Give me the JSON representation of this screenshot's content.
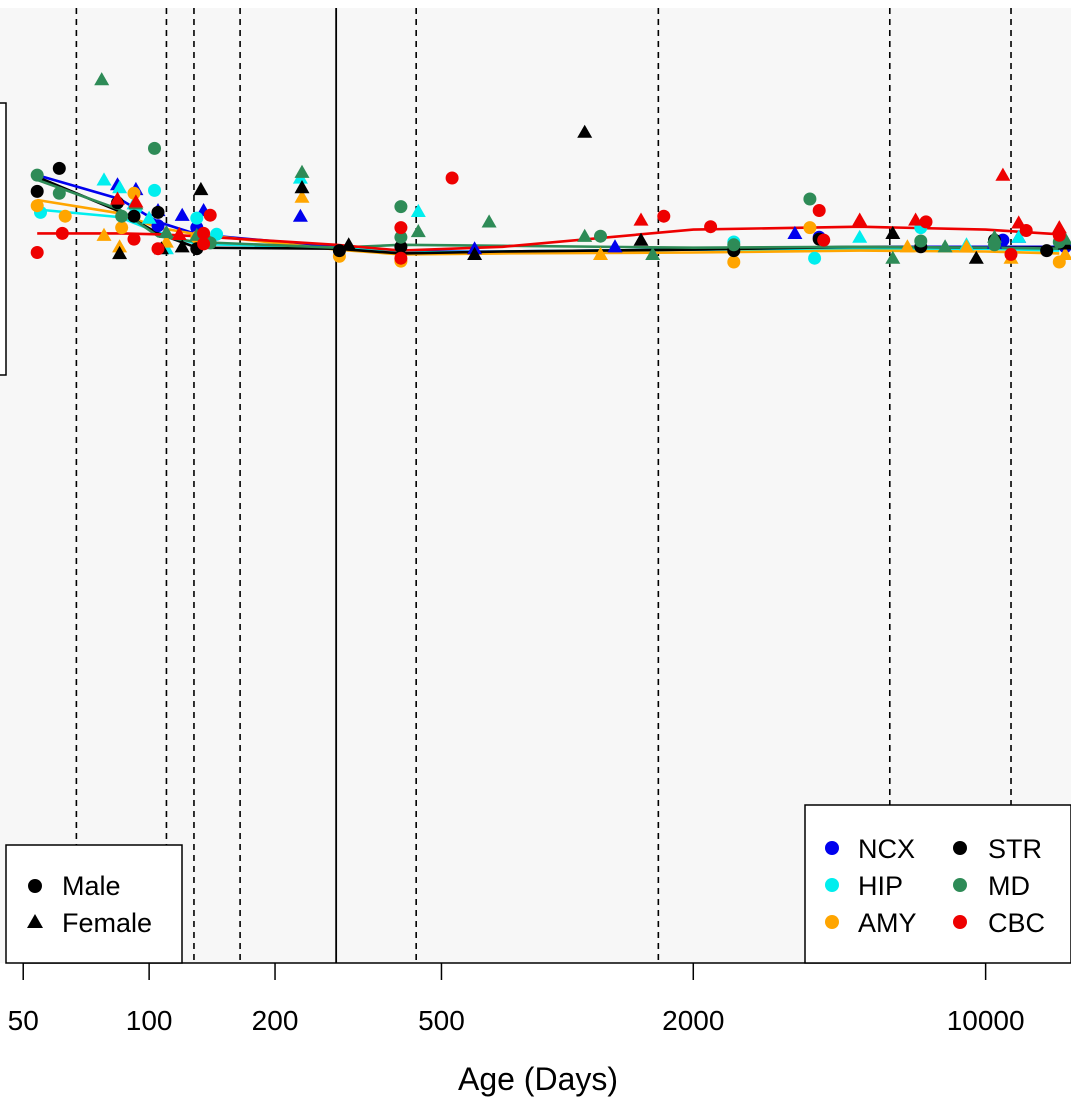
{
  "chart_data": {
    "type": "scatter",
    "title": "",
    "xlabel": "Age (Days)",
    "ylabel": "",
    "x_scale": "log",
    "xlim": [
      44,
      16000
    ],
    "ylim": [
      0,
      1
    ],
    "x_ticks": [
      50,
      100,
      200,
      500,
      2000,
      10000
    ],
    "x_tick_labels": [
      "50",
      "100",
      "200",
      "500",
      "2000",
      "10000"
    ],
    "grid": false,
    "background": "#f7f7f7",
    "vlines_dashed": [
      67,
      110,
      128,
      165,
      435,
      1650,
      5900,
      11500
    ],
    "vline_solid": 280,
    "colors": {
      "NCX": "#0000ee",
      "HIP": "#00eeee",
      "AMY": "#ffa500",
      "STR": "#000000",
      "MD": "#2e8b57",
      "CBC": "#ee0000"
    },
    "shape_legend": {
      "position": "bottom-left",
      "entries": [
        {
          "label": "Male",
          "shape": "circle"
        },
        {
          "label": "Female",
          "shape": "triangle"
        }
      ]
    },
    "region_legend": {
      "position": "bottom-right",
      "entries": [
        "NCX",
        "STR",
        "HIP",
        "MD",
        "AMY",
        "CBC"
      ]
    },
    "lines": [
      {
        "name": "NCX",
        "points": [
          [
            54,
            0.825
          ],
          [
            85,
            0.8
          ],
          [
            105,
            0.776
          ],
          [
            130,
            0.763
          ],
          [
            280,
            0.75
          ],
          [
            400,
            0.745
          ],
          [
            700,
            0.745
          ],
          [
            2000,
            0.747
          ],
          [
            5000,
            0.75
          ],
          [
            10000,
            0.75
          ],
          [
            15000,
            0.75
          ]
        ]
      },
      {
        "name": "HIP",
        "points": [
          [
            54,
            0.789
          ],
          [
            85,
            0.781
          ],
          [
            105,
            0.765
          ],
          [
            130,
            0.753
          ],
          [
            280,
            0.749
          ],
          [
            400,
            0.744
          ],
          [
            700,
            0.745
          ],
          [
            2000,
            0.747
          ],
          [
            5000,
            0.748
          ],
          [
            10000,
            0.748
          ],
          [
            15000,
            0.746
          ]
        ]
      },
      {
        "name": "AMY",
        "points": [
          [
            54,
            0.799
          ],
          [
            85,
            0.785
          ],
          [
            105,
            0.77
          ],
          [
            130,
            0.763
          ],
          [
            280,
            0.747
          ],
          [
            400,
            0.742
          ],
          [
            700,
            0.743
          ],
          [
            2000,
            0.744
          ],
          [
            5000,
            0.746
          ],
          [
            10000,
            0.745
          ],
          [
            15000,
            0.743
          ]
        ]
      },
      {
        "name": "STR",
        "points": [
          [
            54,
            0.823
          ],
          [
            85,
            0.787
          ],
          [
            105,
            0.764
          ],
          [
            130,
            0.749
          ],
          [
            280,
            0.748
          ],
          [
            400,
            0.743
          ],
          [
            700,
            0.745
          ],
          [
            2000,
            0.747
          ],
          [
            5000,
            0.75
          ],
          [
            10000,
            0.749
          ],
          [
            15000,
            0.749
          ]
        ]
      },
      {
        "name": "MD",
        "points": [
          [
            54,
            0.82
          ],
          [
            85,
            0.789
          ],
          [
            105,
            0.761
          ],
          [
            130,
            0.755
          ],
          [
            280,
            0.749
          ],
          [
            400,
            0.752
          ],
          [
            700,
            0.751
          ],
          [
            2000,
            0.749
          ],
          [
            5000,
            0.75
          ],
          [
            10000,
            0.749
          ],
          [
            15000,
            0.748
          ]
        ]
      },
      {
        "name": "CBC",
        "points": [
          [
            54,
            0.764
          ],
          [
            85,
            0.764
          ],
          [
            105,
            0.763
          ],
          [
            130,
            0.761
          ],
          [
            280,
            0.752
          ],
          [
            400,
            0.746
          ],
          [
            700,
            0.75
          ],
          [
            2000,
            0.768
          ],
          [
            5000,
            0.771
          ],
          [
            10000,
            0.768
          ],
          [
            15000,
            0.763
          ]
        ]
      }
    ],
    "points": [
      {
        "region": "NCX",
        "shape": "triangle",
        "points": [
          [
            84,
            0.815
          ],
          [
            93,
            0.81
          ],
          [
            105,
            0.788
          ],
          [
            120,
            0.783
          ],
          [
            135,
            0.788
          ],
          [
            230,
            0.782
          ],
          [
            600,
            0.748
          ],
          [
            12000,
            0.76
          ],
          [
            10500,
            0.754
          ],
          [
            3500,
            0.764
          ],
          [
            1300,
            0.75
          ]
        ]
      },
      {
        "region": "NCX",
        "shape": "circle",
        "points": [
          [
            105,
            0.772
          ],
          [
            130,
            0.77
          ],
          [
            4000,
            0.76
          ],
          [
            15500,
            0.75
          ],
          [
            11000,
            0.757
          ]
        ]
      },
      {
        "region": "HIP",
        "shape": "triangle",
        "points": [
          [
            78,
            0.82
          ],
          [
            85,
            0.812
          ],
          [
            92,
            0.795
          ],
          [
            100,
            0.78
          ],
          [
            110,
            0.748
          ],
          [
            230,
            0.822
          ],
          [
            440,
            0.787
          ],
          [
            5000,
            0.76
          ],
          [
            12000,
            0.76
          ],
          [
            9000,
            0.752
          ]
        ]
      },
      {
        "region": "HIP",
        "shape": "circle",
        "points": [
          [
            55,
            0.786
          ],
          [
            93,
            0.79
          ],
          [
            103,
            0.809
          ],
          [
            130,
            0.78
          ],
          [
            145,
            0.763
          ],
          [
            3900,
            0.738
          ],
          [
            7000,
            0.77
          ],
          [
            2500,
            0.755
          ]
        ]
      },
      {
        "region": "AMY",
        "shape": "triangle",
        "points": [
          [
            78,
            0.762
          ],
          [
            85,
            0.75
          ],
          [
            110,
            0.755
          ],
          [
            232,
            0.802
          ],
          [
            1200,
            0.742
          ],
          [
            6500,
            0.75
          ],
          [
            9000,
            0.75
          ],
          [
            11500,
            0.738
          ],
          [
            15500,
            0.742
          ]
        ]
      },
      {
        "region": "AMY",
        "shape": "circle",
        "points": [
          [
            54,
            0.793
          ],
          [
            63,
            0.782
          ],
          [
            86,
            0.77
          ],
          [
            92,
            0.806
          ],
          [
            130,
            0.76
          ],
          [
            285,
            0.74
          ],
          [
            400,
            0.735
          ],
          [
            2500,
            0.734
          ],
          [
            3800,
            0.77
          ],
          [
            15000,
            0.734
          ]
        ]
      },
      {
        "region": "STR",
        "shape": "triangle",
        "points": [
          [
            85,
            0.743
          ],
          [
            107,
            0.748
          ],
          [
            120,
            0.75
          ],
          [
            133,
            0.81
          ],
          [
            232,
            0.812
          ],
          [
            300,
            0.752
          ],
          [
            600,
            0.742
          ],
          [
            1100,
            0.87
          ],
          [
            1500,
            0.757
          ],
          [
            6000,
            0.764
          ],
          [
            9500,
            0.738
          ],
          [
            15500,
            0.753
          ]
        ]
      },
      {
        "region": "STR",
        "shape": "circle",
        "points": [
          [
            54,
            0.808
          ],
          [
            61,
            0.832
          ],
          [
            84,
            0.796
          ],
          [
            92,
            0.782
          ],
          [
            105,
            0.786
          ],
          [
            130,
            0.748
          ],
          [
            285,
            0.746
          ],
          [
            400,
            0.75
          ],
          [
            2500,
            0.746
          ],
          [
            4000,
            0.758
          ],
          [
            7000,
            0.75
          ],
          [
            10500,
            0.757
          ],
          [
            14000,
            0.746
          ]
        ]
      },
      {
        "region": "MD",
        "shape": "triangle",
        "points": [
          [
            77,
            0.925
          ],
          [
            93,
            0.795
          ],
          [
            110,
            0.765
          ],
          [
            130,
            0.762
          ],
          [
            232,
            0.828
          ],
          [
            440,
            0.766
          ],
          [
            650,
            0.776
          ],
          [
            1100,
            0.761
          ],
          [
            1600,
            0.742
          ],
          [
            6000,
            0.738
          ],
          [
            8000,
            0.75
          ],
          [
            10500,
            0.76
          ],
          [
            15500,
            0.758
          ]
        ]
      },
      {
        "region": "MD",
        "shape": "circle",
        "points": [
          [
            54,
            0.825
          ],
          [
            61,
            0.806
          ],
          [
            86,
            0.782
          ],
          [
            103,
            0.853
          ],
          [
            140,
            0.754
          ],
          [
            400,
            0.792
          ],
          [
            400,
            0.76
          ],
          [
            1200,
            0.761
          ],
          [
            2500,
            0.752
          ],
          [
            3800,
            0.8
          ],
          [
            7000,
            0.756
          ],
          [
            10500,
            0.752
          ],
          [
            15000,
            0.755
          ]
        ]
      },
      {
        "region": "CBC",
        "shape": "triangle",
        "points": [
          [
            84,
            0.8
          ],
          [
            93,
            0.797
          ],
          [
            118,
            0.763
          ],
          [
            1500,
            0.778
          ],
          [
            5000,
            0.778
          ],
          [
            6800,
            0.778
          ],
          [
            11000,
            0.825
          ],
          [
            12000,
            0.775
          ],
          [
            15000,
            0.77
          ],
          [
            18000,
            0.825
          ]
        ]
      },
      {
        "region": "CBC",
        "shape": "circle",
        "points": [
          [
            54,
            0.744
          ],
          [
            62,
            0.764
          ],
          [
            92,
            0.758
          ],
          [
            105,
            0.748
          ],
          [
            135,
            0.764
          ],
          [
            135,
            0.753
          ],
          [
            140,
            0.783
          ],
          [
            400,
            0.77
          ],
          [
            400,
            0.738
          ],
          [
            530,
            0.822
          ],
          [
            1700,
            0.782
          ],
          [
            2200,
            0.771
          ],
          [
            4000,
            0.788
          ],
          [
            4100,
            0.757
          ],
          [
            7200,
            0.776
          ],
          [
            11500,
            0.742
          ],
          [
            12500,
            0.767
          ],
          [
            15000,
            0.762
          ]
        ]
      }
    ]
  }
}
